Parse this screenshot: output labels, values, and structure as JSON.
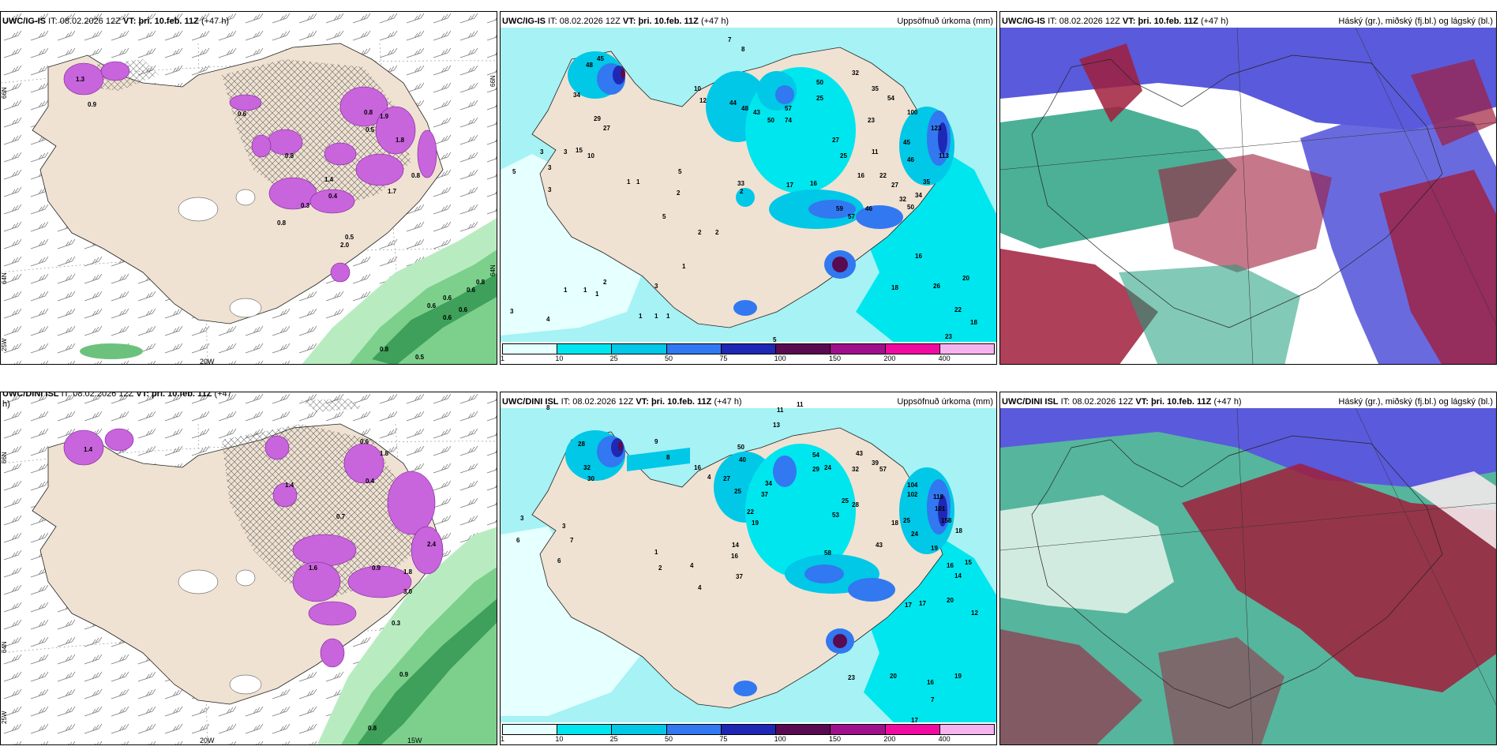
{
  "panels": [
    {
      "id": "top-left",
      "model": "UWC/IG-IS",
      "it_label": "IT:",
      "it_value": "08.02.2026 12Z",
      "vt_label": "VT:",
      "vt_value": "þri. 10.feb. 11Z",
      "lead": "(+47 h)",
      "right_title": "",
      "lon_labels": [
        "20W"
      ],
      "lat_labels": [
        "66N",
        "64N",
        "25W"
      ],
      "right_lat_labels": [
        "66N",
        "64N"
      ],
      "values": [
        "1.3",
        "0.9",
        "0.6",
        "0.8",
        "1.9",
        "0.5",
        "1.4",
        "0.8",
        "1.8",
        "0.4",
        "0.3",
        "0.5",
        "2.0",
        "0.8",
        "1.7",
        "0.8",
        "0.6",
        "0.6",
        "0.6",
        "0.6",
        "0.6",
        "0.8",
        "0.5",
        "0.8"
      ]
    },
    {
      "id": "top-middle",
      "model": "UWC/IG-IS",
      "it_label": "IT:",
      "it_value": "08.02.2026 12Z",
      "vt_label": "VT:",
      "vt_value": "þri. 10.feb. 11Z",
      "lead": "(+47 h)",
      "right_title": "Uppsöfnuð úrkoma (mm)",
      "values": [
        "7",
        "8",
        "48",
        "45",
        "34",
        "29",
        "27",
        "10",
        "12",
        "44",
        "48",
        "43",
        "50",
        "57",
        "74",
        "50",
        "25",
        "32",
        "35",
        "54",
        "23",
        "100",
        "45",
        "46",
        "123",
        "113",
        "15",
        "10",
        "3",
        "3",
        "3",
        "5",
        "3",
        "1",
        "1",
        "2",
        "5",
        "2",
        "2",
        "2",
        "33",
        "17",
        "16",
        "16",
        "27",
        "25",
        "11",
        "22",
        "27",
        "32",
        "34",
        "35",
        "59",
        "46",
        "50",
        "57",
        "5",
        "1",
        "2",
        "1",
        "3",
        "1",
        "1",
        "3",
        "4",
        "1",
        "1",
        "1",
        "18",
        "16",
        "26",
        "20",
        "22",
        "18",
        "23",
        "5"
      ]
    },
    {
      "id": "top-right",
      "model": "UWC/IG-IS",
      "it_label": "IT:",
      "it_value": "08.02.2026 12Z",
      "vt_label": "VT:",
      "vt_value": "þri. 10.feb. 11Z",
      "lead": "(+47 h)",
      "right_title": "Háský (gr.), miðský (fj.bl.) og lágský (bl.)"
    },
    {
      "id": "bottom-left",
      "model": "UWC/DINI ISL",
      "it_label": "IT:",
      "it_value": "08.02.2026 12Z",
      "vt_label": "VT:",
      "vt_value": "þri. 10.feb. 11Z",
      "lead": "(+47",
      "lead_wrap": "h)",
      "right_title": "",
      "lon_labels": [
        "20W",
        "15W"
      ],
      "lat_labels": [
        "66N",
        "64N",
        "25W"
      ],
      "values": [
        "1.4",
        "0.6",
        "1.8",
        "0.4",
        "1.4",
        "0.7",
        "1.6",
        "0.9",
        "1.8",
        "3.0",
        "2.4",
        "0.3",
        "0.9",
        "0.8"
      ]
    },
    {
      "id": "bottom-middle",
      "model": "UWC/DINI ISL",
      "it_label": "IT:",
      "it_value": "08.02.2026 12Z",
      "vt_label": "VT:",
      "vt_value": "þri. 10.feb. 11Z",
      "lead": "(+47 h)",
      "right_title": "Uppsöfnuð úrkoma (mm)",
      "values": [
        "8",
        "11",
        "11",
        "13",
        "9",
        "8",
        "28",
        "32",
        "30",
        "16",
        "4",
        "27",
        "50",
        "40",
        "25",
        "34",
        "37",
        "22",
        "19",
        "54",
        "29",
        "24",
        "43",
        "39",
        "32",
        "57",
        "104",
        "102",
        "118",
        "101",
        "158",
        "14",
        "16",
        "53",
        "58",
        "43",
        "25",
        "28",
        "18",
        "25",
        "24",
        "19",
        "18",
        "3",
        "6",
        "3",
        "7",
        "6",
        "1",
        "2",
        "4",
        "4",
        "37",
        "16",
        "15",
        "14",
        "17",
        "17",
        "20",
        "12",
        "20",
        "16",
        "19",
        "7",
        "23",
        "17"
      ]
    },
    {
      "id": "bottom-right",
      "model": "UWC/DINI ISL",
      "it_label": "IT:",
      "it_value": "08.02.2026 12Z",
      "vt_label": "VT:",
      "vt_value": "þri. 10.feb. 11Z",
      "lead": "(+47 h)",
      "right_title": "Háský (gr.), miðský (fj.bl.) og lágský (bl.)"
    }
  ],
  "precip_legend": {
    "ticks": [
      "1",
      "10",
      "25",
      "50",
      "75",
      "100",
      "150",
      "200",
      "400"
    ],
    "colors": [
      "#e6ffff",
      "#00e6ee",
      "#00c8e6",
      "#3278f0",
      "#1e28b4",
      "#5a0a50",
      "#a0108c",
      "#f00aa0",
      "#f5b4f0"
    ]
  },
  "colors": {
    "land": "#efe2d2",
    "ocean_precip": "#a6f2f4",
    "snow_purple": "#c864dc",
    "rain_green": "#90e0a0",
    "cloud_high": "#1e9c7c",
    "cloud_mid": "#5a5adc",
    "cloud_low": "#a01e3c"
  }
}
